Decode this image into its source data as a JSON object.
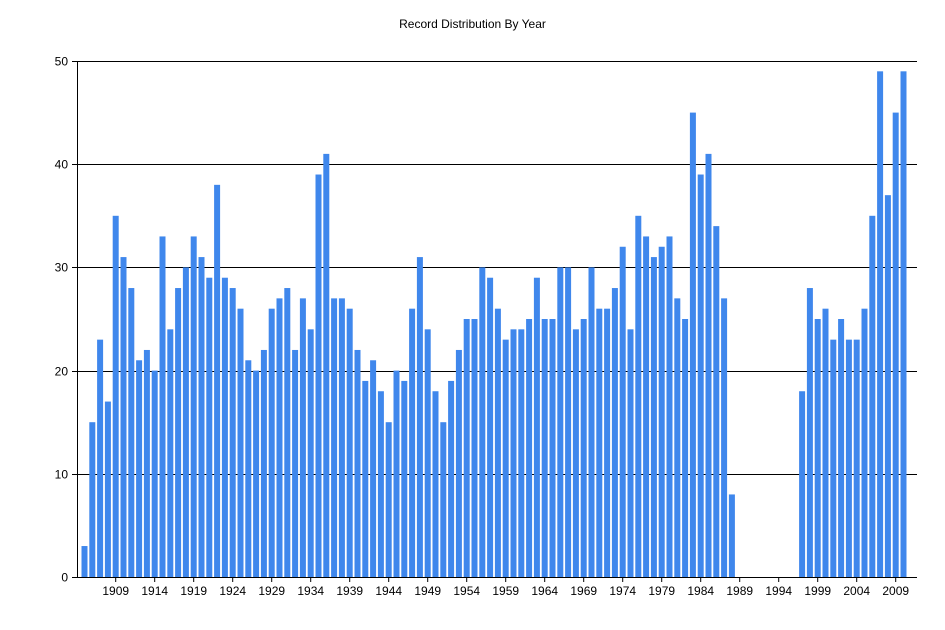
{
  "chart_data": {
    "type": "bar",
    "title": "Record Distribution By Year",
    "xlabel": "",
    "ylabel": "",
    "ylim": [
      0,
      50
    ],
    "yticks": [
      0,
      10,
      20,
      30,
      40,
      50
    ],
    "xtick_labels": [
      "1909",
      "1914",
      "1919",
      "1924",
      "1929",
      "1934",
      "1939",
      "1944",
      "1949",
      "1954",
      "1959",
      "1964",
      "1969",
      "1974",
      "1979",
      "1984",
      "1989",
      "1994",
      "1999",
      "2004",
      "2009"
    ],
    "grid": true,
    "legend": "none",
    "bar_color": "#3f87ec",
    "categories": [
      1905,
      1906,
      1907,
      1908,
      1909,
      1910,
      1911,
      1912,
      1913,
      1914,
      1915,
      1916,
      1917,
      1918,
      1919,
      1920,
      1921,
      1922,
      1923,
      1924,
      1925,
      1926,
      1927,
      1928,
      1929,
      1930,
      1931,
      1932,
      1933,
      1934,
      1935,
      1936,
      1937,
      1938,
      1939,
      1940,
      1941,
      1942,
      1943,
      1944,
      1945,
      1946,
      1947,
      1948,
      1949,
      1950,
      1951,
      1952,
      1953,
      1954,
      1955,
      1956,
      1957,
      1958,
      1959,
      1960,
      1961,
      1962,
      1963,
      1964,
      1965,
      1966,
      1967,
      1968,
      1969,
      1970,
      1971,
      1972,
      1973,
      1974,
      1975,
      1976,
      1977,
      1978,
      1979,
      1980,
      1981,
      1982,
      1983,
      1984,
      1985,
      1986,
      1987,
      1988,
      1989,
      1990,
      1991,
      1992,
      1993,
      1994,
      1995,
      1996,
      1997,
      1998,
      1999,
      2000,
      2001,
      2002,
      2003,
      2004,
      2005,
      2006,
      2007,
      2008,
      2009,
      2010
    ],
    "values": [
      3,
      15,
      23,
      17,
      35,
      31,
      28,
      21,
      22,
      20,
      33,
      24,
      28,
      30,
      33,
      31,
      29,
      38,
      29,
      28,
      26,
      21,
      20,
      22,
      26,
      27,
      28,
      22,
      27,
      24,
      39,
      41,
      27,
      27,
      26,
      22,
      19,
      21,
      18,
      15,
      20,
      19,
      26,
      31,
      24,
      18,
      15,
      19,
      22,
      25,
      25,
      30,
      29,
      26,
      23,
      24,
      24,
      25,
      29,
      25,
      25,
      30,
      30,
      24,
      25,
      30,
      26,
      26,
      28,
      32,
      24,
      35,
      33,
      31,
      32,
      33,
      27,
      25,
      45,
      39,
      41,
      34,
      27,
      8,
      0,
      0,
      0,
      0,
      0,
      0,
      0,
      0,
      18,
      28,
      25,
      26,
      23,
      25,
      23,
      23,
      26,
      35,
      49,
      37,
      45,
      49
    ]
  }
}
